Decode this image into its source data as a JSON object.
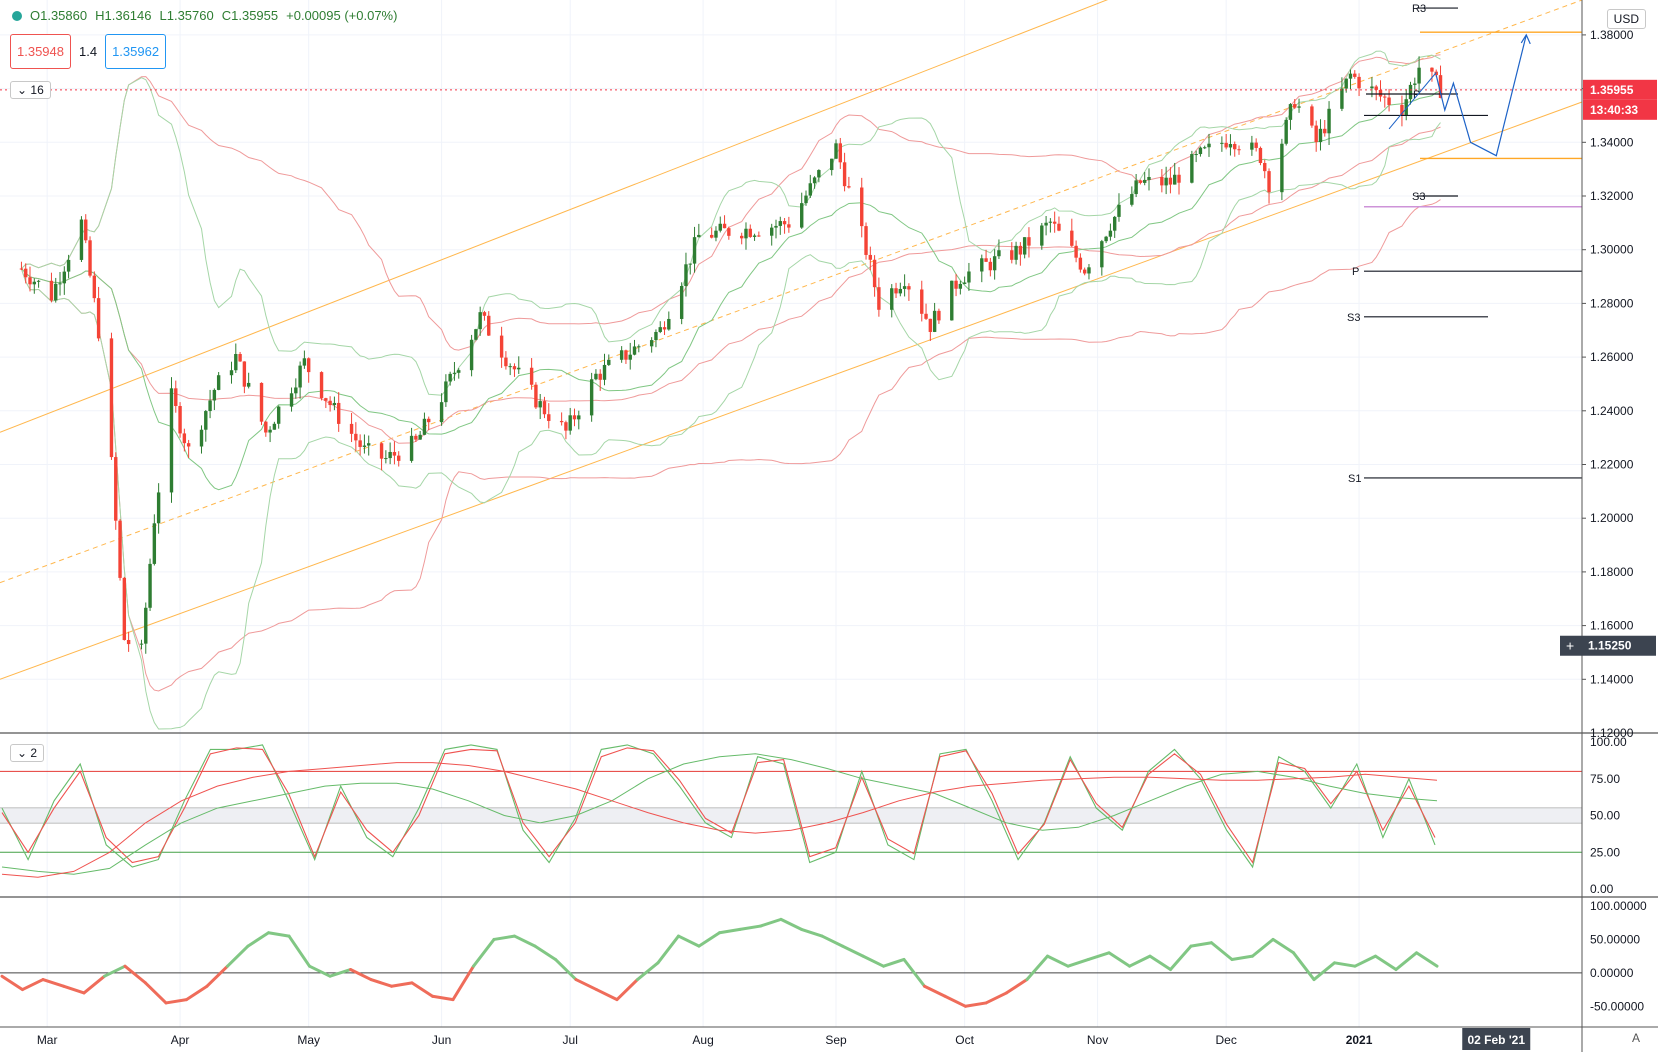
{
  "legend": {
    "open": "O1.35860",
    "high": "H1.36146",
    "low": "L1.35760",
    "close": "C1.35955",
    "change": "+0.00095 (+0.07%)"
  },
  "trade": {
    "sell": "1.35948",
    "spread": "1.4",
    "buy": "1.35962"
  },
  "panes": {
    "main_collapse": "16",
    "osc_collapse": "2"
  },
  "scale": {
    "currency": "USD",
    "auto": "A"
  },
  "badges": {
    "last_price": "1.35955",
    "countdown": "13:40:33",
    "crosshair_price": "1.15250",
    "date_label": "02 Feb '21"
  },
  "pivots": {
    "r3": "R3",
    "p_top": "P",
    "s3_top": "S3",
    "p_mid": "P",
    "s3_mid": "S3",
    "s1": "S1"
  },
  "colors": {
    "up": "#2e7d32",
    "down": "#f44336",
    "channel": "#ffb74d",
    "bb_red": "#ef9a9a",
    "bb_green": "#a5d6a7",
    "forecast": "#1e63c7",
    "last_price_badge": "#f23645",
    "osc_red": "#ef5350",
    "osc_green": "#66bb6a"
  },
  "chart_data": [
    {
      "type": "candlestick",
      "title": "",
      "x_ticks": [
        "Mar",
        "Apr",
        "May",
        "Jun",
        "Jul",
        "Aug",
        "Sep",
        "Oct",
        "Nov",
        "Dec",
        "2021"
      ],
      "y_ticks": [
        "1.38000",
        "1.36000",
        "1.34000",
        "1.32000",
        "1.30000",
        "1.28000",
        "1.26000",
        "1.24000",
        "1.22000",
        "1.20000",
        "1.18000",
        "1.16000",
        "1.14000",
        "1.12000"
      ],
      "ylim": [
        1.12,
        1.393
      ],
      "last_close": 1.35955,
      "close_path": [
        {
          "d": "2020-02-24",
          "v": 1.293
        },
        {
          "d": "2020-03-02",
          "v": 1.283
        },
        {
          "d": "2020-03-09",
          "v": 1.31
        },
        {
          "d": "2020-03-13",
          "v": 1.27
        },
        {
          "d": "2020-03-16",
          "v": 1.22
        },
        {
          "d": "2020-03-19",
          "v": 1.155
        },
        {
          "d": "2020-03-23",
          "v": 1.15
        },
        {
          "d": "2020-03-26",
          "v": 1.2
        },
        {
          "d": "2020-03-30",
          "v": 1.245
        },
        {
          "d": "2020-04-03",
          "v": 1.225
        },
        {
          "d": "2020-04-09",
          "v": 1.248
        },
        {
          "d": "2020-04-14",
          "v": 1.26
        },
        {
          "d": "2020-04-21",
          "v": 1.232
        },
        {
          "d": "2020-04-30",
          "v": 1.258
        },
        {
          "d": "2020-05-07",
          "v": 1.24
        },
        {
          "d": "2020-05-14",
          "v": 1.225
        },
        {
          "d": "2020-05-19",
          "v": 1.222
        },
        {
          "d": "2020-05-26",
          "v": 1.228
        },
        {
          "d": "2020-06-02",
          "v": 1.248
        },
        {
          "d": "2020-06-10",
          "v": 1.275
        },
        {
          "d": "2020-06-16",
          "v": 1.26
        },
        {
          "d": "2020-06-24",
          "v": 1.242
        },
        {
          "d": "2020-06-30",
          "v": 1.232
        },
        {
          "d": "2020-07-07",
          "v": 1.253
        },
        {
          "d": "2020-07-15",
          "v": 1.262
        },
        {
          "d": "2020-07-22",
          "v": 1.27
        },
        {
          "d": "2020-07-31",
          "v": 1.305
        },
        {
          "d": "2020-08-07",
          "v": 1.307
        },
        {
          "d": "2020-08-14",
          "v": 1.308
        },
        {
          "d": "2020-08-21",
          "v": 1.31
        },
        {
          "d": "2020-09-01",
          "v": 1.338
        },
        {
          "d": "2020-09-08",
          "v": 1.3
        },
        {
          "d": "2020-09-11",
          "v": 1.28
        },
        {
          "d": "2020-09-17",
          "v": 1.29
        },
        {
          "d": "2020-09-23",
          "v": 1.272
        },
        {
          "d": "2020-09-30",
          "v": 1.29
        },
        {
          "d": "2020-10-07",
          "v": 1.295
        },
        {
          "d": "2020-10-14",
          "v": 1.3
        },
        {
          "d": "2020-10-21",
          "v": 1.31
        },
        {
          "d": "2020-10-29",
          "v": 1.293
        },
        {
          "d": "2020-11-04",
          "v": 1.31
        },
        {
          "d": "2020-11-11",
          "v": 1.325
        },
        {
          "d": "2020-11-18",
          "v": 1.325
        },
        {
          "d": "2020-11-25",
          "v": 1.335
        },
        {
          "d": "2020-12-02",
          "v": 1.342
        },
        {
          "d": "2020-12-09",
          "v": 1.335
        },
        {
          "d": "2020-12-11",
          "v": 1.325
        },
        {
          "d": "2020-12-17",
          "v": 1.356
        },
        {
          "d": "2020-12-22",
          "v": 1.34
        },
        {
          "d": "2020-12-30",
          "v": 1.365
        },
        {
          "d": "2021-01-06",
          "v": 1.357
        },
        {
          "d": "2021-01-11",
          "v": 1.353
        },
        {
          "d": "2021-01-15",
          "v": 1.368
        },
        {
          "d": "2021-01-20",
          "v": 1.36
        }
      ],
      "forecast": [
        {
          "d": "2021-01-19",
          "v": 1.365
        },
        {
          "d": "2021-01-21",
          "v": 1.352
        },
        {
          "d": "2021-01-23",
          "v": 1.362
        },
        {
          "d": "2021-01-27",
          "v": 1.34
        },
        {
          "d": "2021-02-02",
          "v": 1.335
        },
        {
          "d": "2021-02-09",
          "v": 1.38
        }
      ],
      "horizontal_levels": [
        {
          "label": "R3",
          "v": 1.39
        },
        {
          "label": "P",
          "v": 1.358
        },
        {
          "label": "S3",
          "v": 1.32
        },
        {
          "label": "P",
          "v": 1.292
        },
        {
          "label": "S3",
          "v": 1.275
        },
        {
          "label": "S1",
          "v": 1.215
        }
      ],
      "orange_levels": [
        1.381,
        1.334
      ],
      "magenta_level": 1.316,
      "dotted_last_price": 1.35955
    },
    {
      "type": "line",
      "title": "",
      "y_ticks": [
        "100.00",
        "75.00",
        "50.00",
        "25.00",
        "0.00"
      ],
      "ylim": [
        0,
        100
      ],
      "bands": [
        80,
        55,
        45,
        25
      ],
      "series": [
        {
          "values": [
            55,
            20,
            60,
            85,
            30,
            15,
            20,
            60,
            95,
            95,
            98,
            60,
            20,
            70,
            35,
            22,
            55,
            95,
            98,
            95,
            40,
            18,
            48,
            95,
            98,
            92,
            70,
            45,
            35,
            90,
            85,
            18,
            25,
            80,
            30,
            20,
            92,
            95,
            60,
            20,
            45,
            90,
            55,
            40,
            80,
            95,
            75,
            40,
            15,
            90,
            80,
            55,
            85,
            35,
            75,
            30
          ]
        },
        {
          "values": [
            52,
            25,
            55,
            80,
            35,
            18,
            22,
            55,
            92,
            96,
            95,
            65,
            22,
            66,
            40,
            25,
            50,
            92,
            95,
            94,
            45,
            22,
            45,
            90,
            96,
            94,
            74,
            48,
            38,
            86,
            88,
            22,
            28,
            76,
            34,
            24,
            90,
            94,
            65,
            24,
            44,
            88,
            58,
            42,
            78,
            92,
            78,
            44,
            18,
            86,
            82,
            58,
            80,
            40,
            70,
            35
          ]
        }
      ]
    },
    {
      "type": "line",
      "title": "",
      "y_ticks": [
        "100.00000",
        "50.00000",
        "0.00000",
        "-50.00000"
      ],
      "ylim": [
        -75,
        100
      ],
      "values": [
        -5,
        -25,
        -10,
        -20,
        -30,
        -5,
        10,
        -15,
        -45,
        -40,
        -20,
        10,
        40,
        60,
        55,
        10,
        -5,
        5,
        -10,
        -20,
        -15,
        -35,
        -40,
        10,
        50,
        55,
        40,
        20,
        -10,
        -25,
        -40,
        -10,
        15,
        55,
        40,
        60,
        65,
        70,
        80,
        65,
        55,
        40,
        25,
        10,
        20,
        -20,
        -35,
        -50,
        -45,
        -30,
        -10,
        25,
        10,
        20,
        30,
        10,
        25,
        5,
        40,
        45,
        20,
        25,
        50,
        30,
        -10,
        15,
        10,
        25,
        5,
        30,
        10
      ]
    }
  ]
}
